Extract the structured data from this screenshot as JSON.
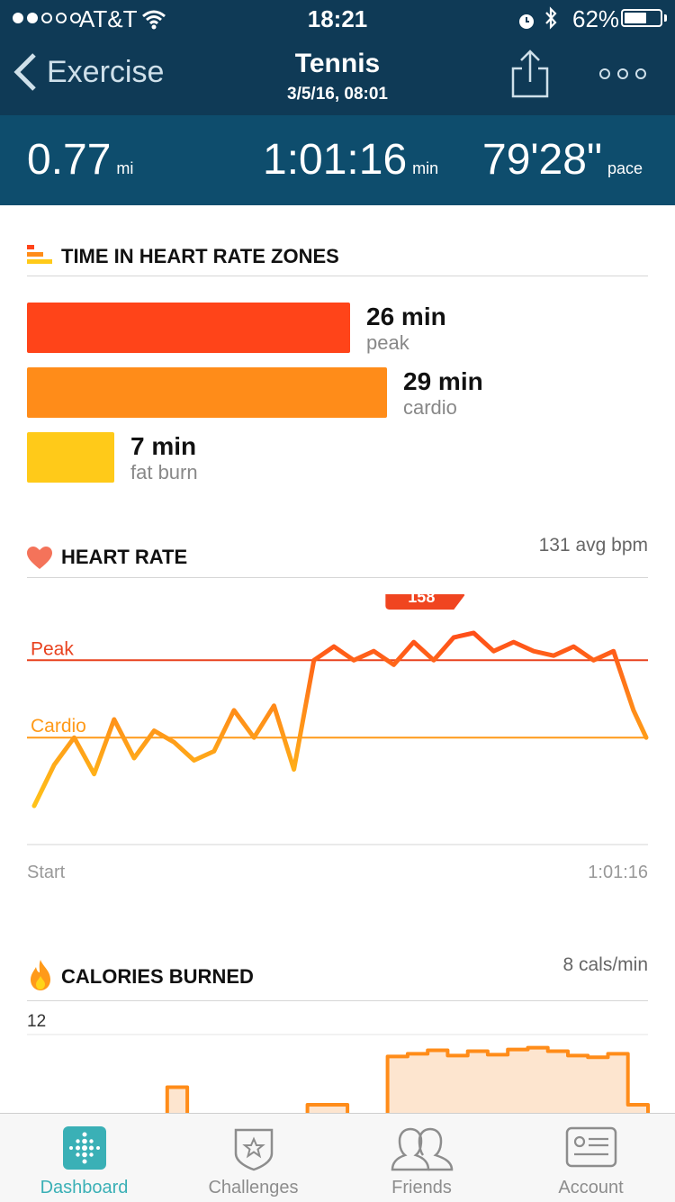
{
  "status_bar": {
    "carrier": "AT&T",
    "time": "18:21",
    "battery_percent": "62%",
    "battery_level": 0.62,
    "signal_bars": 2
  },
  "nav": {
    "back_label": "Exercise",
    "title": "Tennis",
    "subtitle": "3/5/16, 08:01"
  },
  "stats": {
    "distance": {
      "value": "0.77",
      "unit": "mi"
    },
    "duration": {
      "value": "1:01:16",
      "unit": "min"
    },
    "pace": {
      "value": "79'28\"",
      "unit": "pace"
    }
  },
  "zones": {
    "title": "TIME IN HEART RATE ZONES",
    "items": [
      {
        "minutes": "26 min",
        "name": "peak",
        "value": 26,
        "color": "#ff4419"
      },
      {
        "minutes": "29 min",
        "name": "cardio",
        "value": 29,
        "color": "#ff8c19"
      },
      {
        "minutes": "7 min",
        "name": "fat burn",
        "value": 7,
        "color": "#ffca19"
      }
    ]
  },
  "heart_rate": {
    "title": "HEART RATE",
    "avg": "131 avg bpm",
    "peak_label": "Peak",
    "cardio_label": "Cardio",
    "max_label": "158",
    "start_label": "Start",
    "end_label": "1:01:16"
  },
  "calories": {
    "title": "CALORIES BURNED",
    "rate": "8 cals/min",
    "y_max_label": "12"
  },
  "chart_data": [
    {
      "type": "bar",
      "categories": [
        "peak",
        "cardio",
        "fat burn"
      ],
      "values": [
        26,
        29,
        7
      ],
      "title": "TIME IN HEART RATE ZONES"
    },
    {
      "type": "line",
      "title": "HEART RATE",
      "x": [
        0,
        2,
        4,
        6,
        8,
        10,
        12,
        14,
        16,
        18,
        20,
        22,
        24,
        26,
        28,
        30,
        32,
        34,
        36,
        38,
        40,
        42,
        44,
        46,
        48,
        50,
        52,
        54,
        56,
        58,
        60,
        61.27
      ],
      "y": [
        82,
        100,
        112,
        96,
        120,
        103,
        115,
        110,
        102,
        106,
        124,
        112,
        126,
        98,
        146,
        152,
        146,
        150,
        144,
        154,
        146,
        156,
        158,
        150,
        154,
        150,
        148,
        152,
        146,
        150,
        124,
        112
      ],
      "xlabel": "",
      "ylabel": "",
      "zone_lines": {
        "Peak": 146,
        "Cardio": 112
      },
      "max": 158,
      "ylim": [
        65,
        175
      ]
    },
    {
      "type": "area",
      "title": "CALORIES BURNED",
      "x": [
        0,
        2,
        4,
        6,
        8,
        10,
        12,
        14,
        16,
        18,
        20,
        22,
        24,
        26,
        28,
        30,
        32,
        34,
        36,
        38,
        40,
        42,
        44,
        46,
        48,
        50,
        52,
        54,
        56,
        58,
        60
      ],
      "y": [
        0,
        0,
        0,
        0,
        0,
        0,
        0,
        6,
        0,
        0,
        0,
        0,
        0,
        0,
        4,
        4,
        0,
        0,
        9.5,
        9.8,
        10.2,
        9.6,
        10.1,
        9.7,
        10.3,
        10.5,
        10.1,
        9.6,
        9.4,
        9.8,
        4
      ],
      "ylim": [
        0,
        12
      ]
    }
  ]
}
